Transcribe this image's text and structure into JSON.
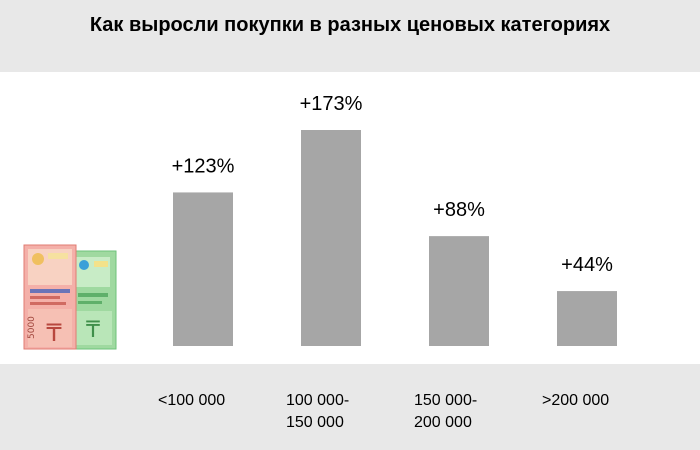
{
  "title": "Как выросли покупки в разных ценовых категориях",
  "colors": {
    "bar": "#a6a6a6",
    "band": "#e8e8e8",
    "text": "#000000"
  },
  "illustration": {
    "name": "banknotes-illustration",
    "texts": [
      "5000",
      "₸"
    ]
  },
  "chart_data": {
    "type": "bar",
    "categories": [
      "<100 000",
      "100 000-\n150 000",
      "150 000-\n200 000",
      ">200 000"
    ],
    "values": [
      123,
      173,
      88,
      44
    ],
    "data_labels": [
      "+123%",
      "+173%",
      "+88%",
      "+44%"
    ],
    "title": "Как выросли покупки в разных ценовых категориях",
    "xlabel": "",
    "ylabel": "",
    "ylim": [
      0,
      173
    ],
    "grid": false,
    "legend": "none"
  }
}
